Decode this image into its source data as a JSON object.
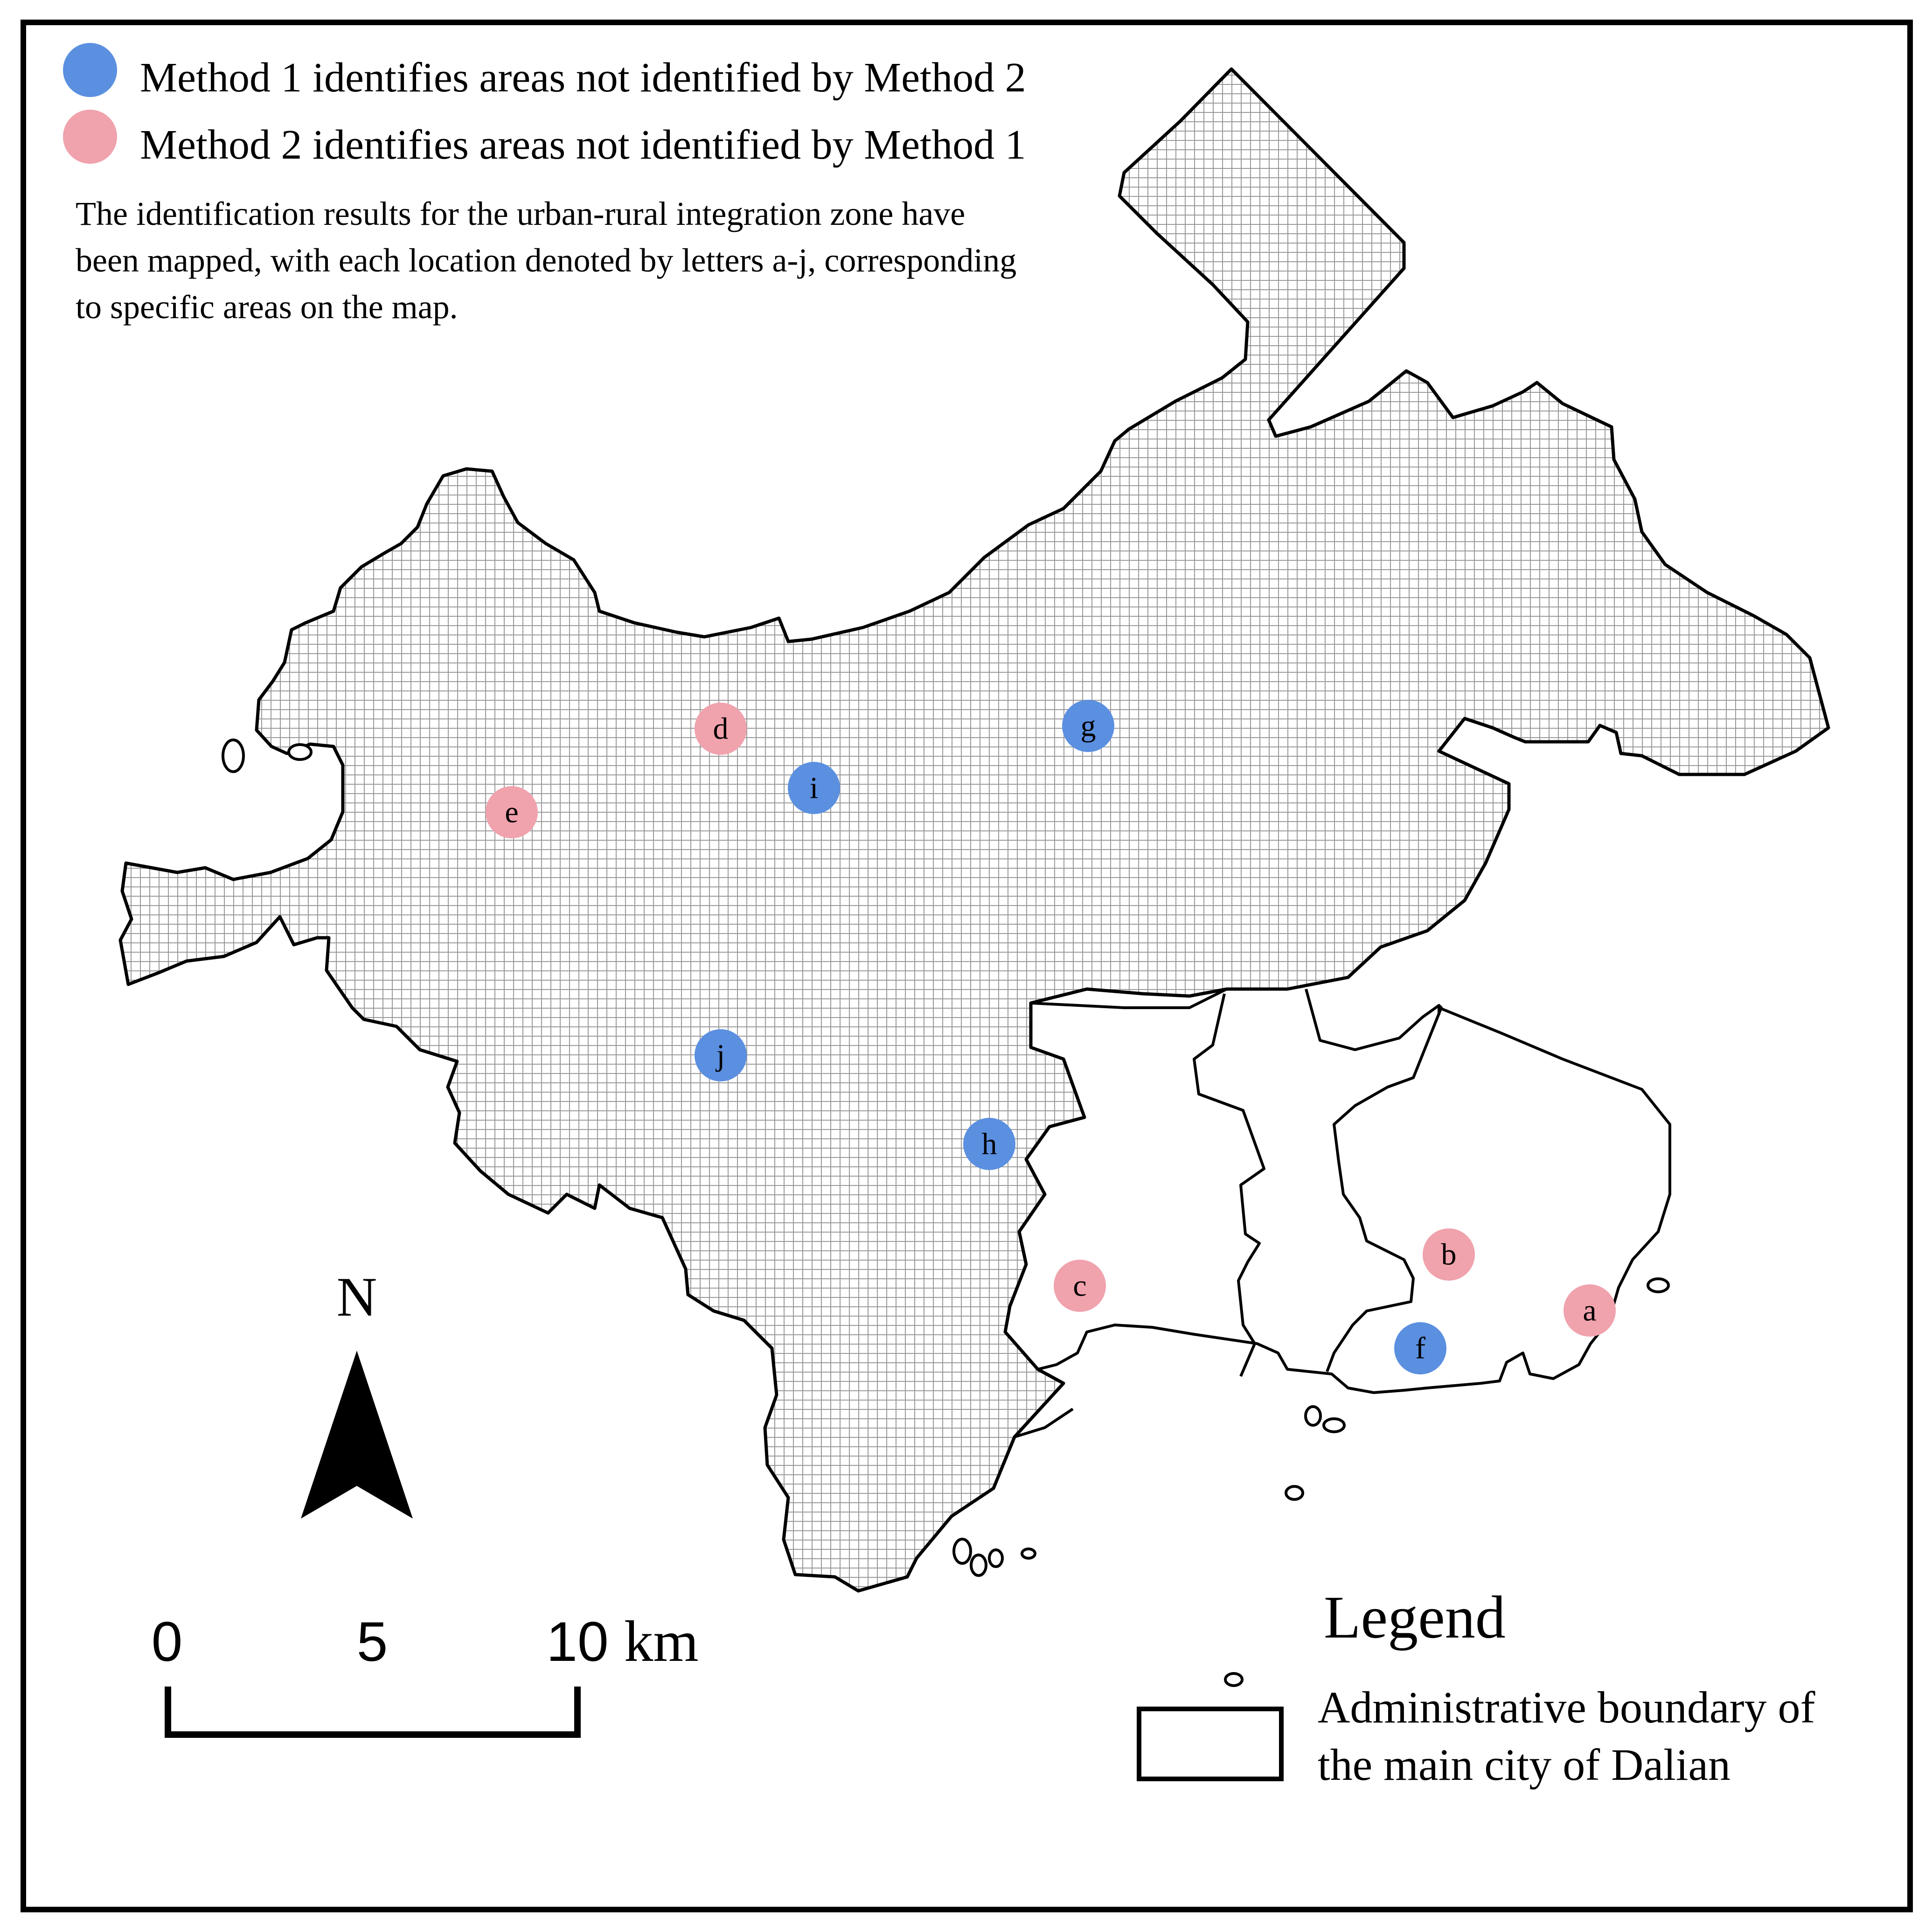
{
  "legend_top": {
    "blue_label": "Method 1 identifies areas not identified by Method 2",
    "pink_label": "Method 2 identifies areas not identified by Method 1",
    "note_lines": [
      "The identification results for the urban-rural integration zone have",
      "been mapped, with each location denoted by letters a-j, corresponding",
      "to specific areas on the map."
    ]
  },
  "colors": {
    "method1_blue": "#5b8fe0",
    "method2_pink": "#f0a2ad",
    "hatch": "#9a9a9a",
    "outline": "#000000"
  },
  "markers": [
    {
      "label": "a",
      "method": 2
    },
    {
      "label": "b",
      "method": 2
    },
    {
      "label": "c",
      "method": 2
    },
    {
      "label": "d",
      "method": 2
    },
    {
      "label": "e",
      "method": 2
    },
    {
      "label": "f",
      "method": 1
    },
    {
      "label": "g",
      "method": 1
    },
    {
      "label": "h",
      "method": 1
    },
    {
      "label": "i",
      "method": 1
    },
    {
      "label": "j",
      "method": 1
    }
  ],
  "north_arrow": {
    "label": "N"
  },
  "scale_bar": {
    "tick_0": "0",
    "tick_5": "5",
    "tick_10": "10",
    "unit": "km"
  },
  "legend_box": {
    "title": "Legend",
    "item_line1": "Administrative boundary of",
    "item_line2": "the main city of Dalian"
  }
}
